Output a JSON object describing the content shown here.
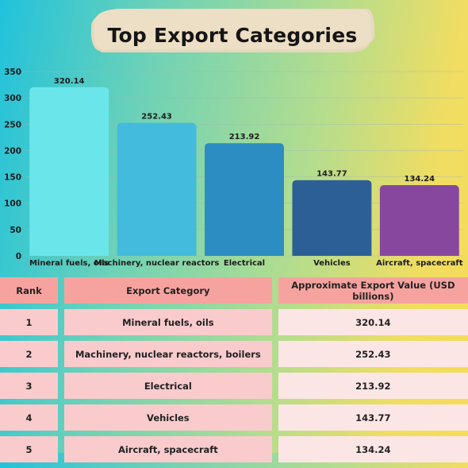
{
  "title": "Top Export Categories",
  "chart_data": {
    "type": "bar",
    "categories": [
      "Mineral fuels, oils",
      "Machinery, nuclear reactors",
      "Electrical",
      "Vehicles",
      "Aircraft, spacecraft"
    ],
    "values": [
      320.14,
      252.43,
      213.92,
      143.77,
      134.24
    ],
    "value_labels": [
      "320.14",
      "252.43",
      "213.92",
      "143.77",
      "134.24"
    ],
    "bar_colors": [
      "#6ae6ea",
      "#43bbdc",
      "#2c8dc2",
      "#2d5f97",
      "#87479f"
    ],
    "ylim": [
      0,
      350
    ],
    "yticks": [
      0,
      50,
      100,
      150,
      200,
      250,
      300,
      350
    ],
    "grid": true,
    "xlabel": "",
    "ylabel": ""
  },
  "table": {
    "headers": [
      "Rank",
      "Export Category",
      "Approximate Export Value (USD billions)"
    ],
    "rows": [
      {
        "rank": "1",
        "category": "Mineral fuels, oils",
        "value": "320.14"
      },
      {
        "rank": "2",
        "category": "Machinery, nuclear reactors, boilers",
        "value": "252.43"
      },
      {
        "rank": "3",
        "category": "Electrical",
        "value": "213.92"
      },
      {
        "rank": "4",
        "category": "Vehicles",
        "value": "143.77"
      },
      {
        "rank": "5",
        "category": "Aircraft, spacecraft",
        "value": "134.24"
      }
    ]
  }
}
